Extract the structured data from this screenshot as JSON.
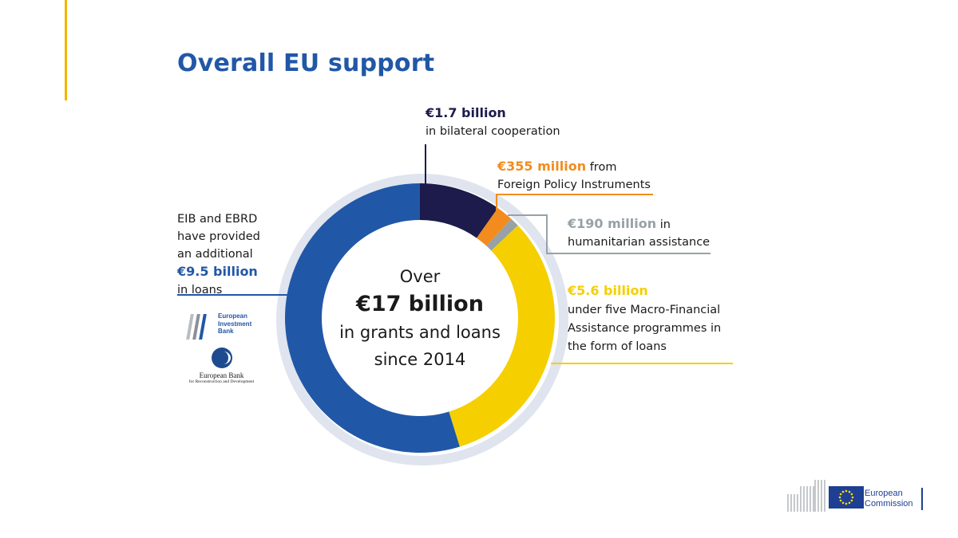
{
  "title": "Overall EU support",
  "colors": {
    "accent": "#f4b400",
    "title": "#2157a7",
    "bilateral": "#1d1b4b",
    "fpi": "#f28c1e",
    "humanitarian": "#98a1a6",
    "mfa": "#f5cf00",
    "eib_ebrd": "#2157a7"
  },
  "center": {
    "line1": "Over",
    "amount": "€17 billion",
    "line3": "in grants and loans",
    "line4": "since 2014"
  },
  "annotations": {
    "bilateral": {
      "value": "€1.7 billion",
      "text": "in bilateral cooperation"
    },
    "fpi": {
      "value": "€355 million",
      "text1": " from",
      "text2": "Foreign Policy Instruments"
    },
    "humanitarian": {
      "value": "€190 million",
      "text1": " in",
      "text2": "humanitarian assistance"
    },
    "mfa": {
      "value": "€5.6 billion",
      "line1": "under five Macro-Financial",
      "line2": "Assistance programmes in",
      "line3": "the form of loans"
    },
    "eib_ebrd": {
      "line1": "EIB and EBRD",
      "line2": "have provided",
      "line3": "an additional",
      "value": "€9.5 billion",
      "line4": "in loans"
    }
  },
  "logos": {
    "eib": {
      "line1": "European",
      "line2": "Investment",
      "line3": "Bank"
    },
    "ebrd": {
      "name": "European Bank",
      "sub": "for Reconstruction and Development"
    },
    "ec": {
      "line1": "European",
      "line2": "Commission"
    }
  },
  "chart_data": {
    "type": "pie",
    "title": "",
    "unit": "EUR billion",
    "slices": [
      {
        "label": "in bilateral cooperation",
        "value": 1.7,
        "color": "#1d1b4b"
      },
      {
        "label": "Foreign Policy Instruments",
        "value": 0.355,
        "color": "#f28c1e"
      },
      {
        "label": "humanitarian assistance",
        "value": 0.19,
        "color": "#98a1a6"
      },
      {
        "label": "Macro-Financial Assistance programmes",
        "value": 5.6,
        "color": "#f5cf00"
      },
      {
        "label": "EIB and EBRD loans",
        "value": 9.5,
        "color": "#2157a7"
      }
    ]
  }
}
